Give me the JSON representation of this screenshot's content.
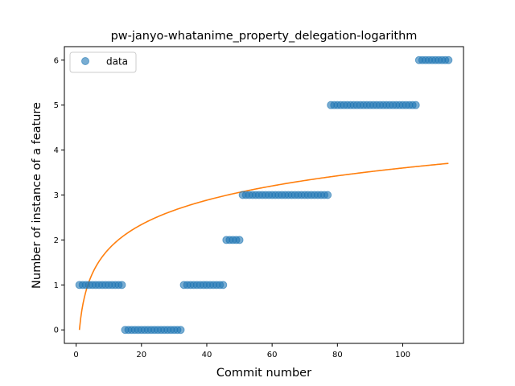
{
  "chart_data": {
    "type": "scatter",
    "title": "pw-janyo-whatanime_property_delegation-logarithm",
    "xlabel": "Commit number",
    "ylabel": "Number of instance of a feature",
    "xlim": [
      -3.6,
      118.6
    ],
    "ylim": [
      -0.3,
      6.3
    ],
    "xticks": [
      0,
      20,
      40,
      60,
      80,
      100
    ],
    "yticks": [
      0,
      1,
      2,
      3,
      4,
      5,
      6
    ],
    "grid": false,
    "legend": {
      "placement": "top-left",
      "entries": [
        "data"
      ]
    },
    "colors": {
      "data": "#1f77b4",
      "fit": "#ff7f0e"
    },
    "series": [
      {
        "name": "data",
        "kind": "scatter",
        "segments": [
          {
            "x_start": 1,
            "x_end": 14,
            "y": 1
          },
          {
            "x_start": 15,
            "x_end": 32,
            "y": 0
          },
          {
            "x_start": 33,
            "x_end": 45,
            "y": 1
          },
          {
            "x_start": 46,
            "x_end": 50,
            "y": 2
          },
          {
            "x_start": 51,
            "x_end": 77,
            "y": 3
          },
          {
            "x_start": 78,
            "x_end": 104,
            "y": 5
          },
          {
            "x_start": 105,
            "x_end": 114,
            "y": 6
          }
        ]
      },
      {
        "kind": "line",
        "fit": {
          "form": "a*ln(x)",
          "a": 0.782,
          "x_start": 1,
          "x_end": 114
        }
      }
    ]
  }
}
